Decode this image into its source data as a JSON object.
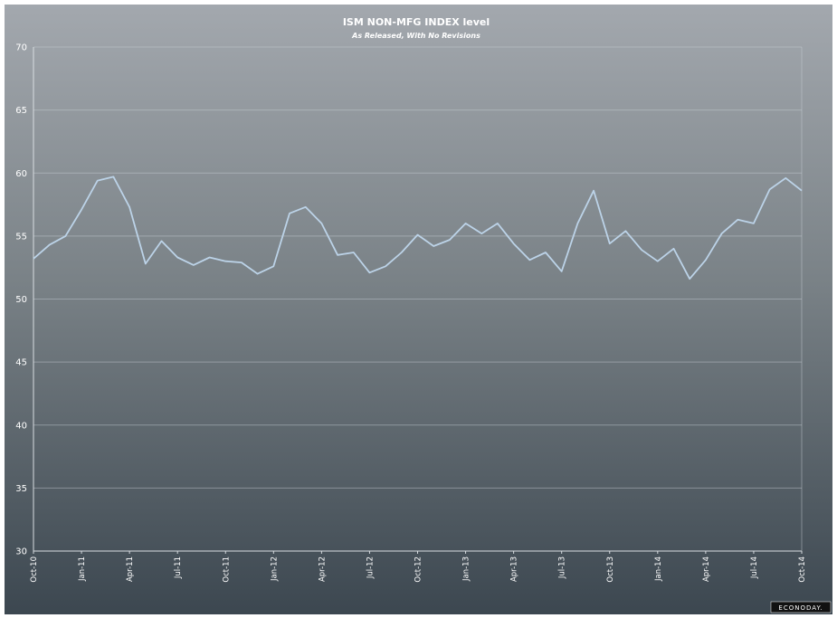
{
  "chart_data": {
    "type": "line",
    "title": "ISM NON-MFG INDEX level",
    "subtitle": "As Released, With No Revisions",
    "xlabel": "",
    "ylabel": "",
    "ylim": [
      30,
      70
    ],
    "yticks": [
      "30",
      "35",
      "40",
      "45",
      "50",
      "55",
      "60",
      "65",
      "70"
    ],
    "x_tick_labels": [
      "Oct-10",
      "Jan-11",
      "Apr-11",
      "Jul-11",
      "Oct-11",
      "Jan-12",
      "Apr-12",
      "Jul-12",
      "Oct-12",
      "Jan-13",
      "Apr-13",
      "Jul-13",
      "Oct-13",
      "Jan-14",
      "Apr-14",
      "Jul-14",
      "Oct-14"
    ],
    "grid": true,
    "line_color": "#bcd3e8",
    "series": [
      {
        "values": [
          53.2,
          54.3,
          55.0,
          57.1,
          59.4,
          59.7,
          57.3,
          52.8,
          54.6,
          53.3,
          52.7,
          53.3,
          53.0,
          52.9,
          52.0,
          52.6,
          56.8,
          57.3,
          56.0,
          53.5,
          53.7,
          52.1,
          52.6,
          53.7,
          55.1,
          54.2,
          54.7,
          56.0,
          55.2,
          56.0,
          54.4,
          53.1,
          53.7,
          52.2,
          56.0,
          58.6,
          54.4,
          55.4,
          53.9,
          53.0,
          54.0,
          51.6,
          53.1,
          55.2,
          56.3,
          56.0,
          58.7,
          59.6,
          58.6
        ]
      }
    ]
  },
  "footer": {
    "brand": "ECONODAY."
  }
}
